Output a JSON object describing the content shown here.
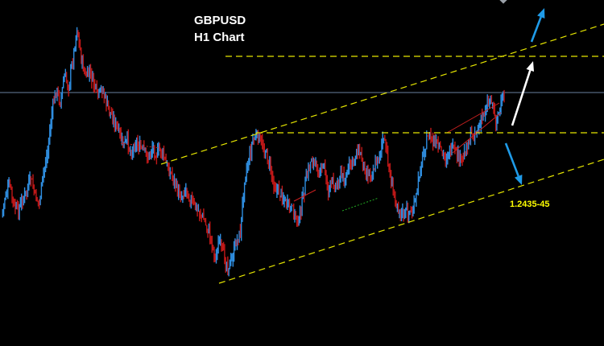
{
  "header": {
    "symbol": "GBPUSD",
    "timeframe": "H1 Chart"
  },
  "annotations": {
    "target_label": "1.2435-45"
  },
  "colors": {
    "background": "#000000",
    "bull": "#2f8ee0",
    "bear": "#c01818",
    "trendline": "#e6e600",
    "price_line": "#6a7fa0",
    "arrow_blue": "#1f9be8",
    "arrow_white": "#ffffff"
  },
  "icons": [
    "up-arrow-icon",
    "down-arrow-icon"
  ],
  "chart_data": {
    "type": "candlestick",
    "title": "GBPUSD",
    "subtitle": "H1 Chart",
    "xlabel": "",
    "ylabel": "",
    "x_axis": "hourly bars (index)",
    "grid": false,
    "close_series": [
      268,
      240,
      232,
      258,
      262,
      248,
      238,
      222,
      244,
      252,
      214,
      188,
      140,
      112,
      126,
      96,
      106,
      74,
      34,
      72,
      96,
      90,
      104,
      120,
      110,
      128,
      140,
      152,
      166,
      180,
      176,
      190,
      176,
      184,
      188,
      196,
      182,
      192,
      186,
      200,
      212,
      220,
      238,
      244,
      232,
      248,
      256,
      262,
      270,
      282,
      296,
      320,
      300,
      318,
      330,
      324,
      300,
      290,
      220,
      200,
      174,
      170,
      178,
      188,
      206,
      228,
      238,
      242,
      254,
      260,
      266,
      276,
      244,
      218,
      196,
      206,
      214,
      206,
      236,
      226,
      232,
      216,
      226,
      206,
      200,
      186,
      196,
      214,
      216,
      208,
      196,
      172,
      190,
      228,
      246,
      260,
      268,
      262,
      266,
      246,
      206,
      184,
      168,
      176,
      182,
      190,
      196,
      186,
      188,
      196,
      200,
      182,
      170,
      164,
      160,
      142,
      128,
      122,
      150,
      136,
      120
    ],
    "levels": [
      {
        "kind": "channel",
        "line": "upper",
        "from": [
          200,
          204
        ],
        "to": [
          750,
          30
        ]
      },
      {
        "kind": "channel",
        "line": "lower",
        "from": [
          272,
          352
        ],
        "to": [
          750,
          198
        ]
      },
      {
        "kind": "horizontal",
        "line": "resistance",
        "y": 70,
        "x_from": 280,
        "x_to": 750
      },
      {
        "kind": "horizontal",
        "line": "neckline",
        "y": 165,
        "x_from": 318,
        "x_to": 750
      },
      {
        "kind": "price_line",
        "y": 115
      }
    ],
    "arrows": [
      {
        "color": "white",
        "from": [
          636,
          156
        ],
        "to": [
          662,
          76
        ]
      },
      {
        "color": "blue",
        "from": [
          660,
          52
        ],
        "to": [
          676,
          10
        ]
      },
      {
        "color": "blue",
        "from": [
          628,
          178
        ],
        "to": [
          648,
          230
        ]
      }
    ]
  }
}
